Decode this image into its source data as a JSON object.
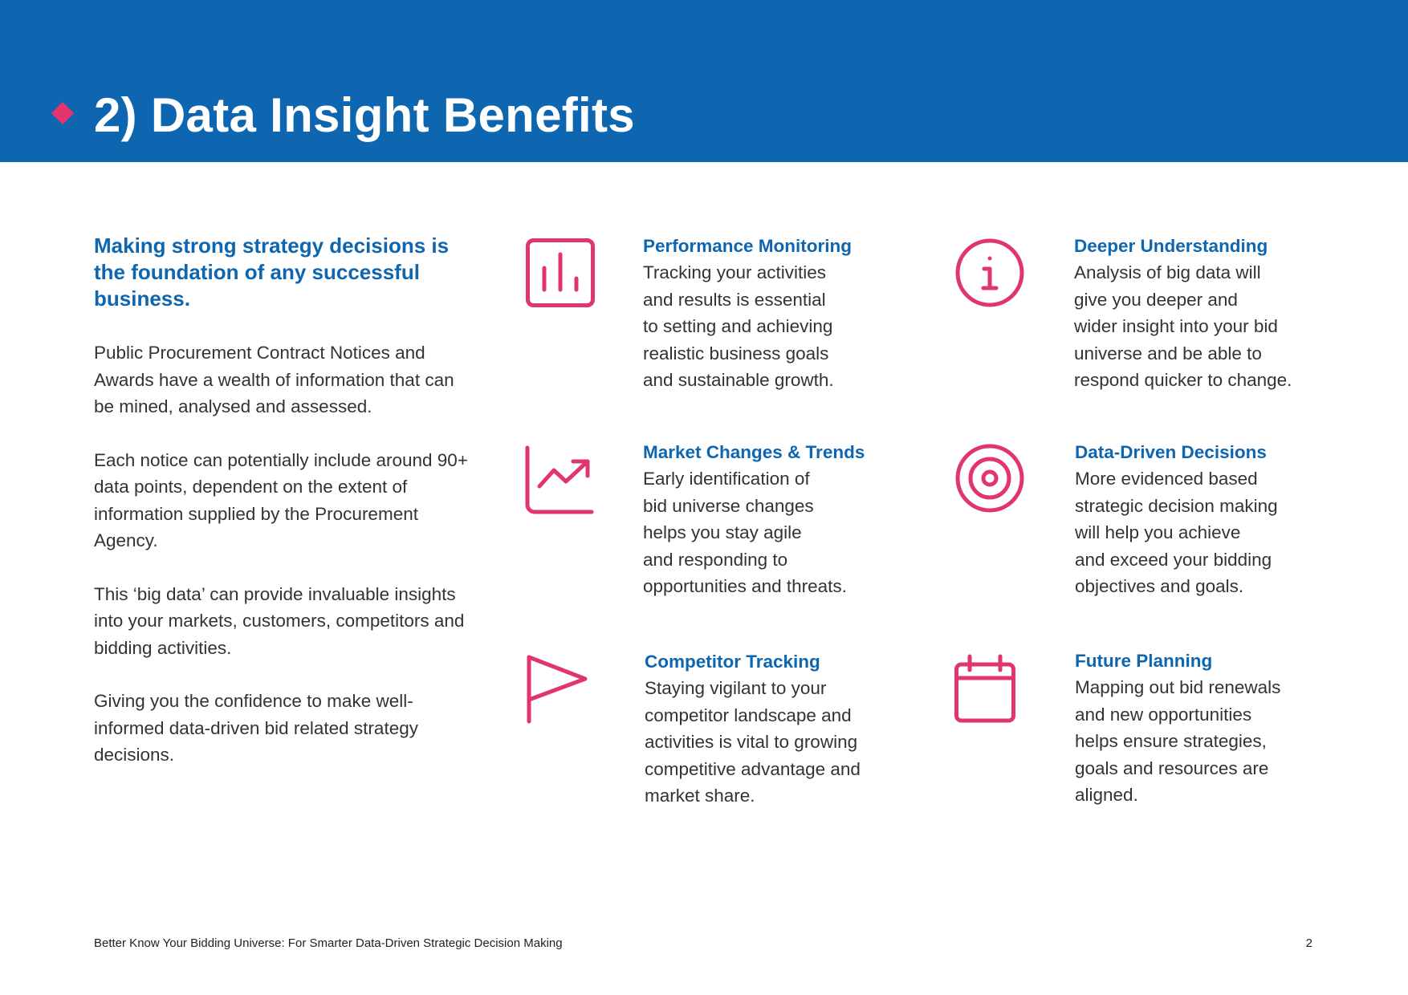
{
  "header": {
    "title": "2) Data Insight Benefits",
    "accent_color": "#e0356f",
    "background_color": "#0e65b0"
  },
  "intro": {
    "lead": "Making strong strategy decisions is the foundation of any successful business.",
    "paragraphs": [
      "Public Procurement Contract Notices and Awards have a wealth of information that can be mined, analysed and assessed.",
      "Each notice can potentially include around 90+ data points, dependent on the extent of information supplied by the Procurement Agency.",
      "This ‘big data’ can provide invaluable insights into your markets, customers, competitors and bidding activities.",
      "Giving you the confidence to make well-informed data-driven bid related strategy decisions."
    ]
  },
  "benefits": [
    {
      "icon": "bar-chart-icon",
      "title": "Performance Monitoring",
      "text": "Tracking your activities\nand results is essential\nto setting and achieving\nrealistic business goals\nand sustainable growth."
    },
    {
      "icon": "info-icon",
      "title": "Deeper Understanding",
      "text": "Analysis of big data will\ngive you deeper and\nwider insight into your bid\nuniverse and be able to\nrespond quicker to change."
    },
    {
      "icon": "trend-chart-icon",
      "title": "Market Changes & Trends",
      "text": "Early identification of\nbid universe changes\nhelps you stay agile\nand responding to\nopportunities and threats."
    },
    {
      "icon": "target-icon",
      "title": "Data-Driven Decisions",
      "text": "More evidenced based\nstrategic decision making\nwill help you achieve\nand exceed your bidding\nobjectives and goals."
    },
    {
      "icon": "flag-icon",
      "title": "Competitor Tracking",
      "text": "Staying vigilant to your\ncompetitor landscape and\nactivities is vital to growing\ncompetitive advantage and\nmarket share."
    },
    {
      "icon": "calendar-icon",
      "title": "Future Planning",
      "text": "Mapping out bid renewals\nand new opportunities\nhelps ensure strategies,\ngoals and resources are\naligned."
    }
  ],
  "footer": {
    "document_title": "Better Know Your Bidding Universe: For Smarter Data-Driven Strategic Decision Making",
    "page_number": "2"
  }
}
